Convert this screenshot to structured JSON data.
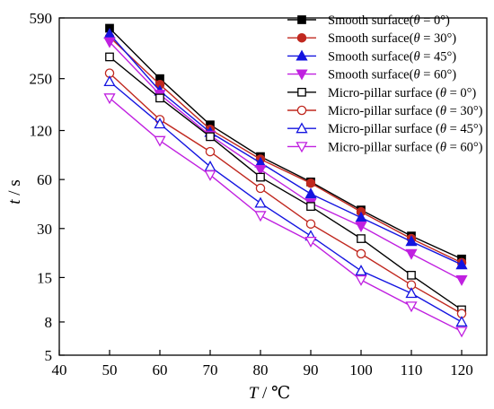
{
  "chart_data": {
    "type": "line",
    "x_axis": {
      "label_var": "T",
      "label_unit": " / ℃",
      "ticks": [
        40,
        50,
        60,
        70,
        80,
        90,
        100,
        110,
        120
      ],
      "range": [
        40,
        125
      ]
    },
    "y_axis": {
      "label_var": "t",
      "label_unit": " / s",
      "scale": "log",
      "ticks": [
        5,
        8,
        15,
        30,
        60,
        120,
        250,
        590
      ],
      "range": [
        5,
        590
      ]
    },
    "x": [
      50,
      60,
      70,
      80,
      90,
      100,
      110,
      120
    ],
    "series": [
      {
        "name_prefix": "Smooth surface(",
        "theta": "θ",
        "name_suffix": " = 0°)",
        "color": "#000000",
        "marker": "square",
        "filled": true,
        "values": [
          510,
          250,
          130,
          83,
          58,
          39,
          27,
          19.5
        ]
      },
      {
        "name_prefix": "Smooth surface(",
        "theta": "θ",
        "name_suffix": " = 30°)",
        "color": "#c0281f",
        "marker": "circle",
        "filled": true,
        "values": [
          450,
          230,
          122,
          80,
          57,
          38,
          26,
          18.5
        ]
      },
      {
        "name_prefix": "Smooth surface(",
        "theta": "θ",
        "name_suffix": " = 45°)",
        "color": "#1414e0",
        "marker": "triangle-up",
        "filled": true,
        "values": [
          470,
          210,
          117,
          76,
          49,
          35,
          25,
          18
        ]
      },
      {
        "name_prefix": "Smooth surface(",
        "theta": "θ",
        "name_suffix": " = 60°)",
        "color": "#c020e0",
        "marker": "triangle-down",
        "filled": true,
        "values": [
          420,
          200,
          112,
          69,
          43,
          31,
          21,
          14.5
        ]
      },
      {
        "name_prefix": "Micro-pillar surface (",
        "theta": "θ",
        "name_suffix": " = 0°)",
        "color": "#000000",
        "marker": "square",
        "filled": false,
        "values": [
          340,
          190,
          110,
          62,
          41,
          26,
          15.5,
          9.5
        ]
      },
      {
        "name_prefix": "Micro-pillar surface (",
        "theta": "θ",
        "name_suffix": " = 30°)",
        "color": "#c0281f",
        "marker": "circle",
        "filled": false,
        "values": [
          270,
          140,
          89,
          53,
          32,
          21,
          13.5,
          9
        ]
      },
      {
        "name_prefix": "Micro-pillar surface (",
        "theta": "θ",
        "name_suffix": " = 45°)",
        "color": "#1414e0",
        "marker": "triangle-up",
        "filled": false,
        "values": [
          240,
          132,
          72,
          43,
          27,
          16.5,
          12,
          8
        ]
      },
      {
        "name_prefix": "Micro-pillar surface (",
        "theta": "θ",
        "name_suffix": " = 60°)",
        "color": "#c020e0",
        "marker": "triangle-down",
        "filled": false,
        "values": [
          190,
          104,
          64,
          36,
          25,
          14.5,
          10,
          7
        ]
      }
    ],
    "legend_position": "top-right",
    "grid": false
  }
}
